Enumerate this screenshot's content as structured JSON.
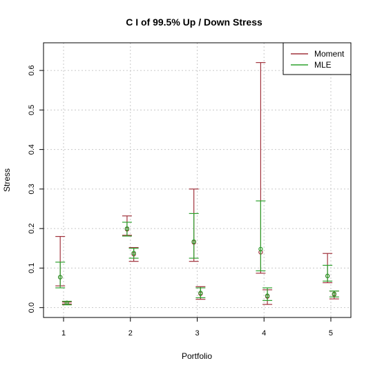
{
  "chart_data": {
    "type": "errorbar",
    "title": "C I of 99.5% Up / Down Stress",
    "xlabel": "Portfolio",
    "ylabel": "Stress",
    "x_ticks": [
      "1",
      "2",
      "3",
      "4",
      "5"
    ],
    "y_ticks": [
      "0.0",
      "0.1",
      "0.2",
      "0.3",
      "0.4",
      "0.5",
      "0.6"
    ],
    "ylim": [
      -0.025,
      0.67
    ],
    "xlim": [
      0.7,
      5.3
    ],
    "grid": true,
    "legend_position": "top-right",
    "series": [
      {
        "name": "Moment",
        "color": "#a0323c",
        "points": [
          {
            "x": 0.95,
            "y": 0.077,
            "lower": 0.055,
            "upper": 0.18
          },
          {
            "x": 1.05,
            "y": 0.012,
            "lower": 0.009,
            "upper": 0.014
          },
          {
            "x": 1.95,
            "y": 0.198,
            "lower": 0.183,
            "upper": 0.232
          },
          {
            "x": 2.05,
            "y": 0.135,
            "lower": 0.117,
            "upper": 0.152
          },
          {
            "x": 2.95,
            "y": 0.165,
            "lower": 0.117,
            "upper": 0.3
          },
          {
            "x": 3.05,
            "y": 0.035,
            "lower": 0.021,
            "upper": 0.053
          },
          {
            "x": 3.95,
            "y": 0.14,
            "lower": 0.087,
            "upper": 0.62
          },
          {
            "x": 4.05,
            "y": 0.028,
            "lower": 0.008,
            "upper": 0.045
          },
          {
            "x": 4.95,
            "y": 0.08,
            "lower": 0.063,
            "upper": 0.137
          },
          {
            "x": 5.05,
            "y": 0.033,
            "lower": 0.022,
            "upper": 0.042
          }
        ]
      },
      {
        "name": "MLE",
        "color": "#2ca02c",
        "points": [
          {
            "x": 0.95,
            "y": 0.077,
            "lower": 0.05,
            "upper": 0.115
          },
          {
            "x": 1.05,
            "y": 0.012,
            "lower": 0.007,
            "upper": 0.016
          },
          {
            "x": 1.95,
            "y": 0.2,
            "lower": 0.181,
            "upper": 0.216
          },
          {
            "x": 2.05,
            "y": 0.138,
            "lower": 0.125,
            "upper": 0.15
          },
          {
            "x": 2.95,
            "y": 0.167,
            "lower": 0.125,
            "upper": 0.238
          },
          {
            "x": 3.05,
            "y": 0.037,
            "lower": 0.025,
            "upper": 0.05
          },
          {
            "x": 3.95,
            "y": 0.148,
            "lower": 0.093,
            "upper": 0.27
          },
          {
            "x": 4.05,
            "y": 0.03,
            "lower": 0.018,
            "upper": 0.05
          },
          {
            "x": 4.95,
            "y": 0.08,
            "lower": 0.067,
            "upper": 0.107
          },
          {
            "x": 5.05,
            "y": 0.035,
            "lower": 0.027,
            "upper": 0.042
          }
        ]
      }
    ]
  }
}
